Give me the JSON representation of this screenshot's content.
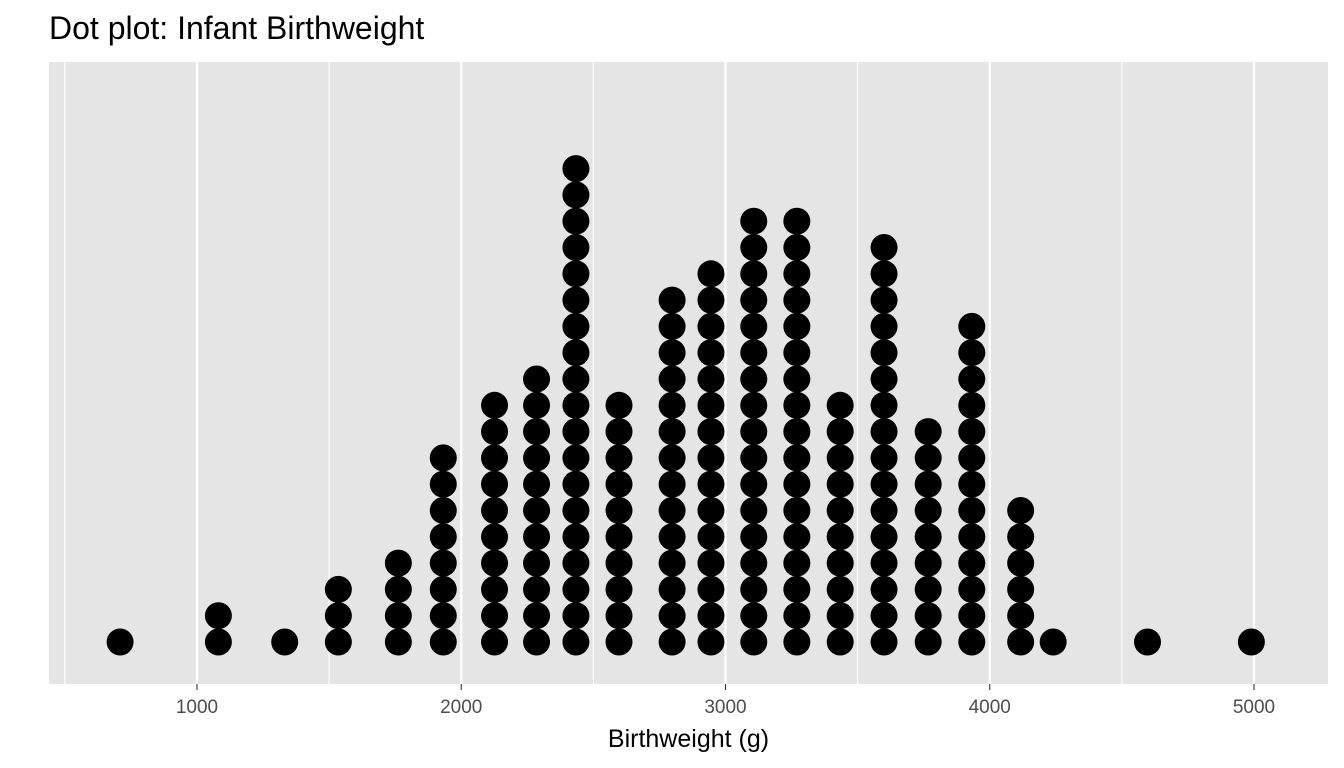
{
  "chart_data": {
    "type": "dotplot",
    "title": "Dot plot: Infant Birthweight",
    "xlabel": "Birthweight (g)",
    "ylabel": "",
    "xlim": [
      440,
      5280
    ],
    "x_ticks": [
      1000,
      2000,
      3000,
      4000,
      5000
    ],
    "x_tick_labels": [
      "1000",
      "2000",
      "3000",
      "4000",
      "5000"
    ],
    "x_minor_gridlines": [
      500,
      1500,
      2500,
      3500,
      4500
    ],
    "grid": true,
    "legend": "none",
    "colors": {
      "panel_background": "#e5e5e5",
      "gridline": "#ffffff",
      "dot": "#000000",
      "tick_label": "#4d4d4d"
    },
    "bins": [
      {
        "x": 709,
        "count": 1
      },
      {
        "x": 1081,
        "count": 2
      },
      {
        "x": 1332,
        "count": 1
      },
      {
        "x": 1535,
        "count": 3
      },
      {
        "x": 1762,
        "count": 4
      },
      {
        "x": 1932,
        "count": 8
      },
      {
        "x": 2126,
        "count": 10
      },
      {
        "x": 2285,
        "count": 11
      },
      {
        "x": 2434,
        "count": 19
      },
      {
        "x": 2597,
        "count": 10
      },
      {
        "x": 2798,
        "count": 14
      },
      {
        "x": 2945,
        "count": 15
      },
      {
        "x": 3107,
        "count": 17
      },
      {
        "x": 3270,
        "count": 17
      },
      {
        "x": 3434,
        "count": 10
      },
      {
        "x": 3600,
        "count": 16
      },
      {
        "x": 3767,
        "count": 9
      },
      {
        "x": 3932,
        "count": 13
      },
      {
        "x": 4117,
        "count": 6
      },
      {
        "x": 4240,
        "count": 1
      },
      {
        "x": 4597,
        "count": 1
      },
      {
        "x": 4990,
        "count": 1
      }
    ]
  }
}
